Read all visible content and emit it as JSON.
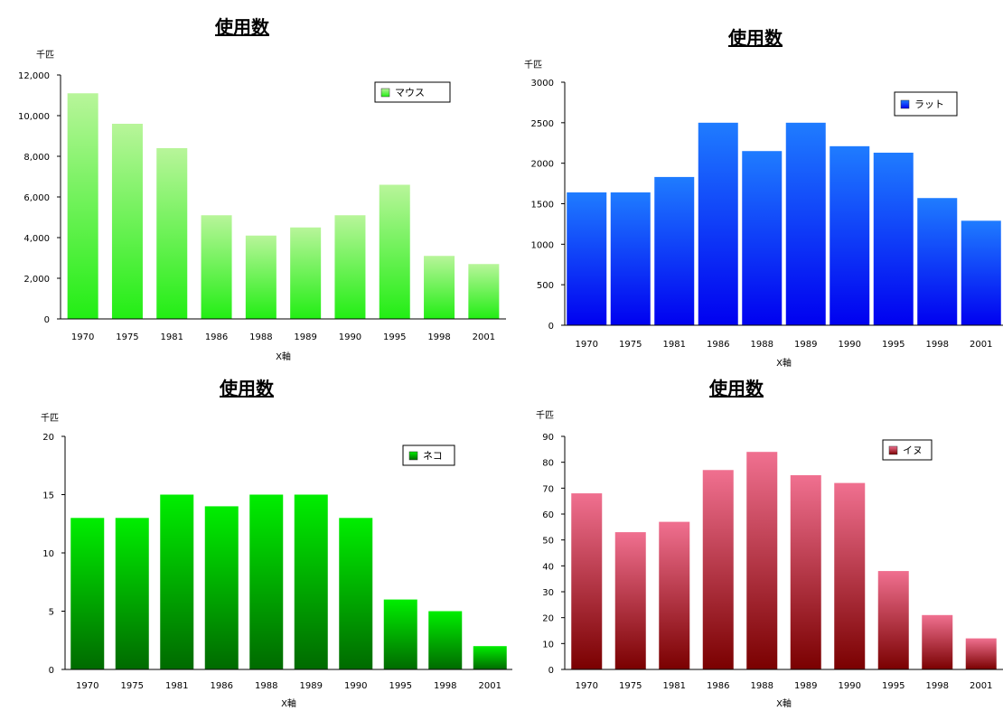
{
  "chart_data": [
    {
      "type": "bar",
      "title": "使用数",
      "unit_label": "千匹",
      "xlabel": "X軸",
      "categories": [
        "1970",
        "1975",
        "1981",
        "1986",
        "1988",
        "1989",
        "1990",
        "1995",
        "1998",
        "2001"
      ],
      "series": [
        {
          "name": "マウス",
          "values": [
            11100,
            9600,
            8400,
            5100,
            4100,
            4500,
            5100,
            6600,
            3100,
            2700
          ]
        }
      ],
      "yticks": [
        "0",
        "2,000",
        "4,000",
        "6,000",
        "8,000",
        "10,000",
        "12,000"
      ],
      "ylim": [
        0,
        12000
      ],
      "legend": "top-right",
      "grid": false,
      "color_top": "#b8f59a",
      "color_bottom": "#22ee14"
    },
    {
      "type": "bar",
      "title": "使用数",
      "unit_label": "千匹",
      "xlabel": "X軸",
      "categories": [
        "1970",
        "1975",
        "1981",
        "1986",
        "1988",
        "1989",
        "1990",
        "1995",
        "1998",
        "2001"
      ],
      "series": [
        {
          "name": "ラット",
          "values": [
            1640,
            1640,
            1830,
            2500,
            2150,
            2500,
            2210,
            2130,
            1570,
            1290
          ]
        }
      ],
      "yticks": [
        "0",
        "500",
        "1000",
        "1500",
        "2000",
        "2500",
        "3000"
      ],
      "ylim": [
        0,
        3000
      ],
      "legend": "top-right",
      "grid": false,
      "color_top": "#1f7cff",
      "color_bottom": "#0000f0"
    },
    {
      "type": "bar",
      "title": "使用数",
      "unit_label": "千匹",
      "xlabel": "X軸",
      "categories": [
        "1970",
        "1975",
        "1981",
        "1986",
        "1988",
        "1989",
        "1990",
        "1995",
        "1998",
        "2001"
      ],
      "series": [
        {
          "name": "ネコ",
          "values": [
            13,
            13,
            15,
            14,
            15,
            15,
            13,
            6,
            5,
            2
          ]
        }
      ],
      "yticks": [
        "0",
        "5",
        "10",
        "15",
        "20"
      ],
      "ylim": [
        0,
        20
      ],
      "legend": "top-right",
      "grid": false,
      "color_top": "#00ee00",
      "color_bottom": "#006a00"
    },
    {
      "type": "bar",
      "title": "使用数",
      "unit_label": "千匹",
      "xlabel": "X軸",
      "categories": [
        "1970",
        "1975",
        "1981",
        "1986",
        "1988",
        "1989",
        "1990",
        "1995",
        "1998",
        "2001"
      ],
      "series": [
        {
          "name": "イヌ",
          "values": [
            68,
            53,
            57,
            77,
            84,
            75,
            72,
            38,
            21,
            12
          ]
        }
      ],
      "yticks": [
        "0",
        "10",
        "20",
        "30",
        "40",
        "50",
        "60",
        "70",
        "80",
        "90"
      ],
      "ylim": [
        0,
        90
      ],
      "legend": "top-right",
      "grid": false,
      "color_top": "#f07090",
      "color_bottom": "#7a0000"
    }
  ]
}
